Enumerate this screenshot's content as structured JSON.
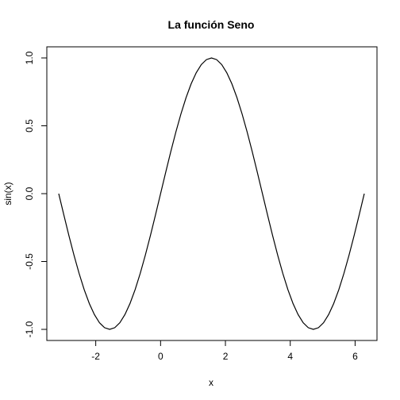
{
  "chart_data": {
    "type": "line",
    "title": "La función Seno",
    "xlabel": "x",
    "ylabel": "sin(x)",
    "xlim": [
      -3.14159,
      6.28319
    ],
    "ylim": [
      -1.0,
      1.0
    ],
    "grid": false,
    "x_ticks": [
      -2,
      0,
      2,
      4,
      6
    ],
    "x_tick_labels": [
      "-2",
      "0",
      "2",
      "4",
      "6"
    ],
    "y_ticks": [
      -1.0,
      -0.5,
      0.0,
      0.5,
      1.0
    ],
    "y_tick_labels": [
      "-1.0",
      "-0.5",
      "0.0",
      "0.5",
      "1.0"
    ],
    "series": [
      {
        "x": [
          -3.1416,
          -2.9845,
          -2.8274,
          -2.6704,
          -2.5133,
          -2.3562,
          -2.1991,
          -2.042,
          -1.885,
          -1.7279,
          -1.5708,
          -1.4137,
          -1.2566,
          -1.0996,
          -0.9425,
          -0.7854,
          -0.6283,
          -0.4712,
          -0.3142,
          -0.1571,
          0.0,
          0.1571,
          0.3142,
          0.4712,
          0.6283,
          0.7854,
          0.9425,
          1.0996,
          1.2566,
          1.4137,
          1.5708,
          1.7279,
          1.885,
          2.042,
          2.1991,
          2.3562,
          2.5133,
          2.6704,
          2.8274,
          2.9845,
          3.1416,
          3.2987,
          3.4558,
          3.6128,
          3.7699,
          3.927,
          4.0841,
          4.2412,
          4.3982,
          4.5553,
          4.7124,
          4.8695,
          5.0265,
          5.1836,
          5.3407,
          5.4978,
          5.6549,
          5.8119,
          5.969,
          6.1261,
          6.2832
        ],
        "y": [
          0.0,
          -0.1564,
          -0.309,
          -0.454,
          -0.5878,
          -0.7071,
          -0.809,
          -0.891,
          -0.9511,
          -0.9877,
          -1.0,
          -0.9877,
          -0.9511,
          -0.891,
          -0.809,
          -0.7071,
          -0.5878,
          -0.454,
          -0.309,
          -0.1564,
          0.0,
          0.1564,
          0.309,
          0.454,
          0.5878,
          0.7071,
          0.809,
          0.891,
          0.9511,
          0.9877,
          1.0,
          0.9877,
          0.9511,
          0.891,
          0.809,
          0.7071,
          0.5878,
          0.454,
          0.309,
          0.1564,
          0.0,
          -0.1564,
          -0.309,
          -0.454,
          -0.5878,
          -0.7071,
          -0.809,
          -0.891,
          -0.9511,
          -0.9877,
          -1.0,
          -0.9877,
          -0.9511,
          -0.891,
          -0.809,
          -0.7071,
          -0.5878,
          -0.454,
          -0.309,
          -0.1564,
          0.0
        ]
      }
    ]
  }
}
